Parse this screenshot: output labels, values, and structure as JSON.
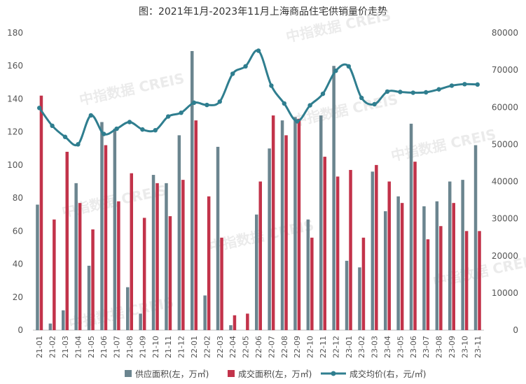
{
  "chart_data": {
    "type": "bar",
    "title": "图：2021年1月-2023年11月上海商品住宅供销量价走势",
    "watermark": {
      "cn": "中指数据",
      "en": "CREIS"
    },
    "categories": [
      "21-01",
      "21-02",
      "21-03",
      "21-04",
      "21-05",
      "21-06",
      "21-07",
      "21-08",
      "21-09",
      "21-10",
      "21-11",
      "21-12",
      "22-01",
      "22-02",
      "22-03",
      "22-04",
      "22-05",
      "22-06",
      "22-07",
      "22-08",
      "22-09",
      "22-10",
      "22-11",
      "22-12",
      "23-01",
      "23-02",
      "23-03",
      "23-04",
      "23-05",
      "23-06",
      "23-07",
      "23-08",
      "23-09",
      "23-10",
      "23-11"
    ],
    "left_axis": {
      "min": 0,
      "max": 180,
      "ticks": [
        0,
        20,
        40,
        60,
        80,
        100,
        120,
        140,
        160,
        180
      ]
    },
    "right_axis": {
      "min": 0,
      "max": 80000,
      "ticks": [
        0,
        10000,
        20000,
        30000,
        40000,
        50000,
        60000,
        70000,
        80000
      ]
    },
    "series": [
      {
        "name": "供应面积(左，万㎡)",
        "type": "bar",
        "axis": "left",
        "color": "#6b858f",
        "values": [
          76,
          4,
          12,
          89,
          39,
          126,
          122,
          26,
          10,
          94,
          89,
          118,
          169,
          21,
          111,
          3,
          0,
          70,
          110,
          127,
          129,
          67,
          130,
          160,
          42,
          38,
          96,
          72,
          81,
          125,
          75,
          78,
          90,
          91,
          112
        ]
      },
      {
        "name": "成交面积(左，万㎡)",
        "type": "bar",
        "axis": "left",
        "color": "#c2334a",
        "values": [
          142,
          67,
          108,
          77,
          61,
          112,
          78,
          95,
          68,
          89,
          69,
          91,
          127,
          81,
          56,
          9,
          10,
          90,
          130,
          118,
          128,
          56,
          105,
          93,
          97,
          56,
          100,
          90,
          77,
          102,
          55,
          63,
          77,
          60,
          60
        ]
      },
      {
        "name": "成交均价(右，元/㎡)",
        "type": "line",
        "axis": "right",
        "color": "#2f7e8f",
        "values": [
          59800,
          55000,
          52000,
          50000,
          57800,
          52800,
          54200,
          56000,
          54000,
          53800,
          57500,
          58500,
          61200,
          60600,
          61500,
          69000,
          71000,
          75200,
          65800,
          61000,
          56200,
          60500,
          63600,
          69800,
          71000,
          62500,
          60800,
          64200,
          64100,
          63900,
          64000,
          64800,
          65800,
          66200,
          66100
        ]
      }
    ]
  }
}
